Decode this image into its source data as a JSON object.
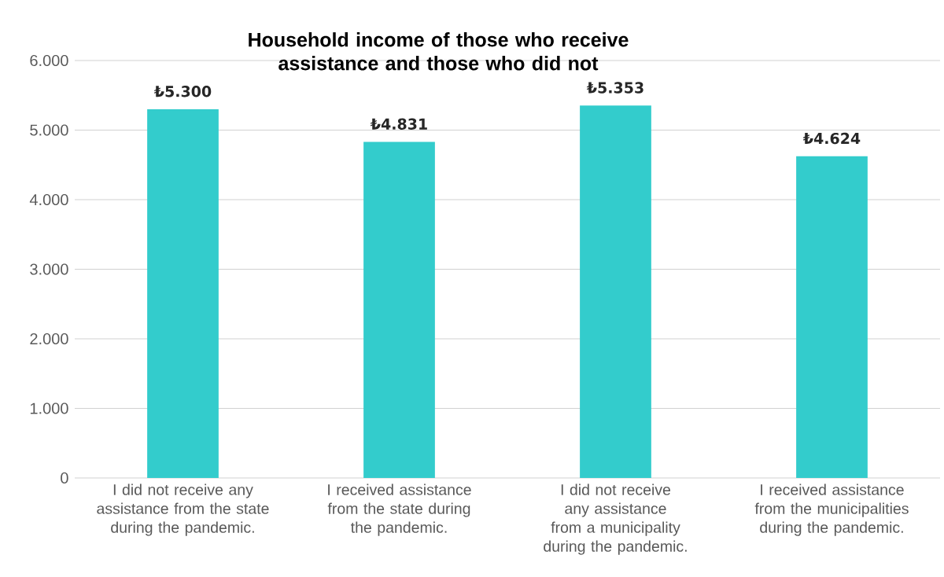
{
  "chart_data": {
    "type": "bar",
    "title": "Household income of those who receive assistance and those who did not",
    "categories": [
      "I did not receive any assistance from the state during the pandemic.",
      "I received assistance from the state during the pandemic.",
      "I did not receive any assistance from a municipality during the pandemic.",
      "I received assistance from the municipalities during the pandemic."
    ],
    "values": [
      5300,
      4831,
      5353,
      4624
    ],
    "value_labels": [
      "₺5.300",
      "₺4.831",
      "₺5.353",
      "₺4.624"
    ],
    "color": "#33cccc",
    "ylim": [
      0,
      6000
    ],
    "yticks": [
      {
        "value": 0,
        "label": "0"
      },
      {
        "value": 1000,
        "label": "1.000"
      },
      {
        "value": 2000,
        "label": "2.000"
      },
      {
        "value": 3000,
        "label": "3.000"
      },
      {
        "value": 4000,
        "label": "4.000"
      },
      {
        "value": 5000,
        "label": "5.000"
      },
      {
        "value": 6000,
        "label": "6.000"
      }
    ],
    "grid": "y"
  }
}
